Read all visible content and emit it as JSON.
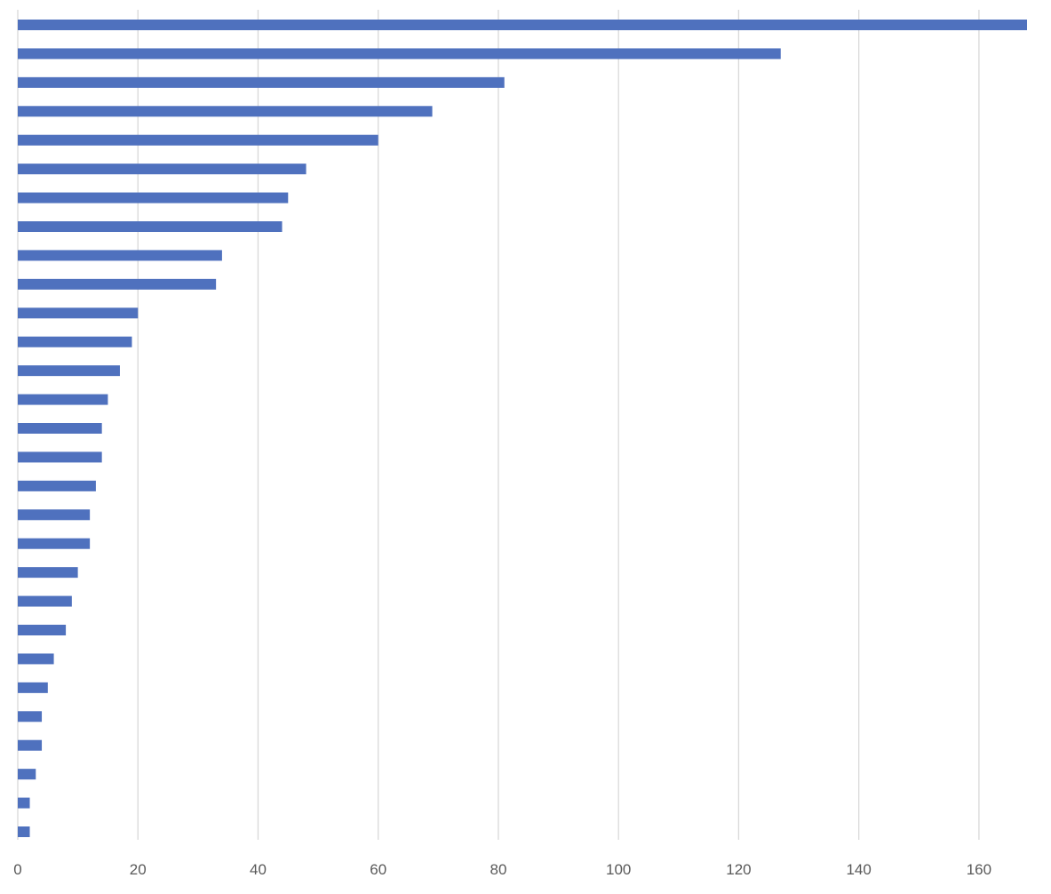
{
  "chart_data": {
    "type": "bar",
    "orientation": "horizontal",
    "title": "",
    "xlabel": "",
    "ylabel": "",
    "xlim": [
      0,
      168
    ],
    "x_ticks": [
      0,
      20,
      40,
      60,
      80,
      100,
      120,
      140,
      160
    ],
    "x_tick_labels": [
      "0",
      "20",
      "40",
      "60",
      "80",
      "100",
      "120",
      "140",
      "160"
    ],
    "grid": "vertical",
    "legend": "none",
    "category_labels_visible": false,
    "values": [
      168,
      127,
      81,
      69,
      60,
      48,
      45,
      44,
      34,
      33,
      20,
      19,
      17,
      15,
      14,
      14,
      13,
      12,
      12,
      10,
      9,
      8,
      6,
      5,
      4,
      4,
      3,
      2,
      2
    ],
    "bar_color": "#4f71be",
    "grid_color": "#d9d9d9",
    "label_color": "#595959"
  }
}
